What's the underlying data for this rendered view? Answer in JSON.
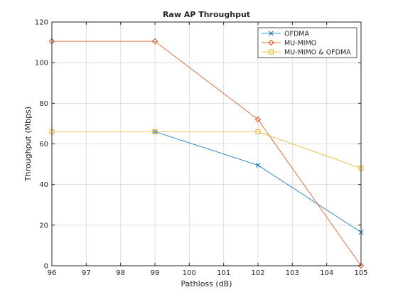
{
  "chart_data": {
    "type": "line",
    "title": "Raw AP Throughput",
    "xlabel": "Pathloss (dB)",
    "ylabel": "Throughput (Mbps)",
    "xlim": [
      96,
      105
    ],
    "ylim": [
      0,
      120
    ],
    "xticks": [
      96,
      97,
      98,
      99,
      100,
      101,
      102,
      103,
      104,
      105
    ],
    "yticks": [
      0,
      20,
      40,
      60,
      80,
      100,
      120
    ],
    "grid": true,
    "legend_position": "top-right",
    "series": [
      {
        "name": "OFDMA",
        "color": "#0072BD",
        "marker": "x",
        "x": [
          99,
          102,
          105
        ],
        "y": [
          66,
          49.5,
          16.5
        ]
      },
      {
        "name": "MU-MIMO",
        "color": "#D95319",
        "marker": "diamond",
        "x": [
          96,
          99,
          102,
          105
        ],
        "y": [
          110.5,
          110.5,
          72,
          0
        ]
      },
      {
        "name": "MU-MIMO & OFDMA",
        "color": "#EDB120",
        "marker": "square",
        "x": [
          96,
          99,
          102,
          105
        ],
        "y": [
          66,
          66,
          66,
          48
        ]
      }
    ]
  }
}
